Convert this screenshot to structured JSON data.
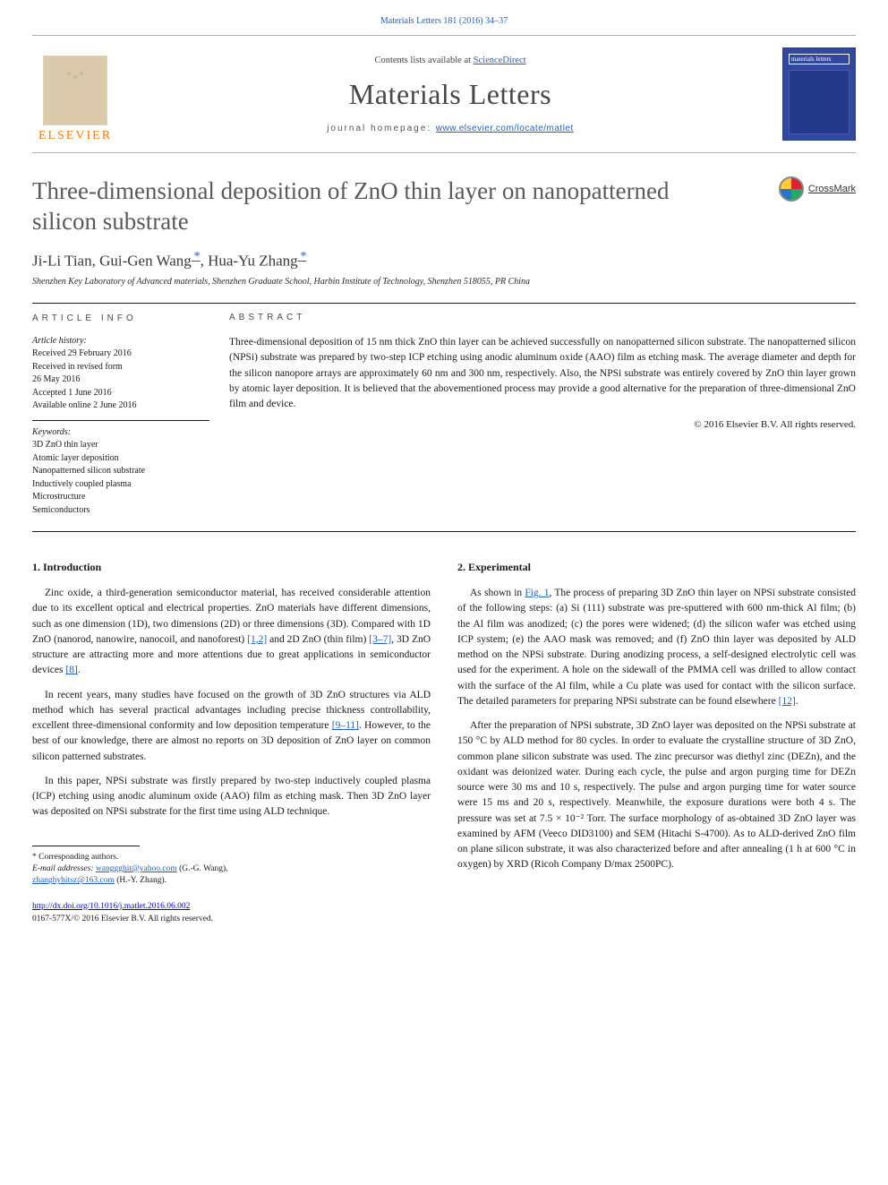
{
  "header": {
    "citation": "Materials Letters 181 (2016) 34–37",
    "contents_line_pre": "Contents lists available at ",
    "contents_link": "ScienceDirect",
    "journal_name": "Materials Letters",
    "homepage_label": "journal homepage: ",
    "homepage_url": "www.elsevier.com/locate/matlet",
    "elsevier_word": "ELSEVIER",
    "cover_label": "materials letters"
  },
  "article": {
    "title": "Three-dimensional deposition of ZnO thin layer on nanopatterned silicon substrate",
    "crossmark": "CrossMark",
    "authors_html": "Ji-Li Tian, Gui-Gen Wang *, Hua-Yu Zhang *",
    "authors": [
      {
        "name": "Ji-Li Tian",
        "corr": false
      },
      {
        "name": "Gui-Gen Wang",
        "corr": true
      },
      {
        "name": "Hua-Yu Zhang",
        "corr": true
      }
    ],
    "affiliation": "Shenzhen Key Laboratory of Advanced materials, Shenzhen Graduate School, Harbin Institute of Technology, Shenzhen 518055, PR China"
  },
  "info": {
    "heading": "ARTICLE INFO",
    "history_label": "Article history:",
    "history": [
      "Received 29 February 2016",
      "Received in revised form",
      "26 May 2016",
      "Accepted 1 June 2016",
      "Available online 2 June 2016"
    ],
    "keywords_label": "Keywords:",
    "keywords": [
      "3D ZnO thin layer",
      "Atomic layer deposition",
      "Nanopatterned silicon substrate",
      "Inductively coupled plasma",
      "Microstructure",
      "Semiconductors"
    ]
  },
  "abstract": {
    "heading": "ABSTRACT",
    "text": "Three-dimensional deposition of 15 nm thick ZnO thin layer can be achieved successfully on nanopatterned silicon substrate. The nanopatterned silicon (NPSi) substrate was prepared by two-step ICP etching using anodic aluminum oxide (AAO) film as etching mask. The average diameter and depth for the silicon nanopore arrays are approximately 60 nm and 300 nm, respectively. Also, the NPSi substrate was entirely covered by ZnO thin layer grown by atomic layer deposition. It is believed that the abovementioned process may provide a good alternative for the preparation of three-dimensional ZnO film and device.",
    "copyright": "© 2016 Elsevier B.V. All rights reserved."
  },
  "body": {
    "sec1_heading": "1.  Introduction",
    "sec1_p1_a": "Zinc oxide, a third-generation semiconductor material, has received considerable attention due to its excellent optical and electrical properties. ZnO materials have different dimensions, such as one dimension (1D), two dimensions (2D) or three dimensions (3D). Compared with 1D ZnO (nanorod, nanowire, nanocoil, and nanoforest) ",
    "ref12": "[1,2]",
    "sec1_p1_b": " and 2D ZnO (thin film) ",
    "ref37": "[3–7]",
    "sec1_p1_c": ", 3D ZnO structure are attracting more and more attentions due to great applications in semiconductor devices ",
    "ref8": "[8]",
    "sec1_p1_d": ".",
    "sec1_p2_a": "In recent years, many studies have focused on the growth of 3D ZnO structures via ALD method which has several practical advantages including precise thickness controllability, excellent three-dimensional conformity and low deposition temperature ",
    "ref911": "[9–11]",
    "sec1_p2_b": ". However, to the best of our knowledge, there are almost no reports on 3D deposition of ZnO layer on common silicon patterned substrates.",
    "sec1_p3": "In this paper, NPSi substrate was firstly prepared by two-step inductively coupled plasma (ICP) etching using anodic aluminum oxide (AAO) film as etching mask. Then 3D ZnO layer was deposited on NPSi substrate for the first time using ALD technique.",
    "sec2_heading": "2.  Experimental",
    "sec2_p1_a": "As shown in ",
    "fig1": "Fig. 1",
    "sec2_p1_b": ", The process of preparing 3D ZnO thin layer on NPSi substrate consisted of the following steps: (a) Si (111) substrate was pre-sputtered with 600 nm-thick Al film; (b) the Al film was anodized; (c) the pores were widened; (d) the silicon wafer was etched using ICP system; (e) the AAO mask was removed; and (f) ZnO thin layer was deposited by ALD method on the NPSi substrate. During anodizing process, a self-designed electrolytic cell was used for the experiment. A hole on the sidewall of the PMMA cell was drilled to allow contact with the surface of the Al film, while a Cu plate was used for contact with the silicon surface. The detailed parameters for preparing NPSi substrate can be found elsewhere ",
    "ref12b": "[12]",
    "sec2_p1_c": ".",
    "sec2_p2": "After the preparation of NPSi substrate, 3D ZnO layer was deposited on the NPSi substrate at 150 °C by ALD method for 80 cycles. In order to evaluate the crystalline structure of 3D ZnO, common plane silicon substrate was used. The zinc precursor was diethyl zinc (DEZn), and the oxidant was deionized water. During each cycle, the pulse and argon purging time for DEZn source were 30 ms and 10 s, respectively. The pulse and argon purging time for water source were 15 ms and 20 s, respectively. Meanwhile, the exposure durations were both 4 s. The pressure was set at 7.5 × 10⁻² Torr. The surface morphology of as-obtained 3D ZnO layer was examined by AFM (Veeco DID3100) and SEM (Hitachi S-4700). As to ALD-derived ZnO film on plane silicon substrate, it was also characterized before and after annealing (1 h at 600 °C in oxygen) by XRD (Ricoh Company D/max 2500PC)."
  },
  "footnotes": {
    "corr_label": "* Corresponding authors.",
    "email_label": "E-mail addresses: ",
    "email1": "wanggghit@yahoo.com",
    "email1_who": " (G.-G. Wang), ",
    "email2": "zhanghyhitsz@163.com",
    "email2_who": " (H.-Y. Zhang)."
  },
  "doi": {
    "url": "http://dx.doi.org/10.1016/j.matlet.2016.06.002",
    "line2": "0167-577X/© 2016 Elsevier B.V. All rights reserved."
  },
  "colors": {
    "link": "#2060c0",
    "accent_orange": "#ff7a00",
    "text": "#1a1a1a",
    "muted": "#5a5a5a",
    "rule": "#b0b0b0",
    "cover_bg": "#3048a0"
  },
  "typography": {
    "title_pt": 27,
    "authors_pt": 17,
    "body_pt": 11.5,
    "small_pt": 10,
    "journal_pt": 32
  }
}
